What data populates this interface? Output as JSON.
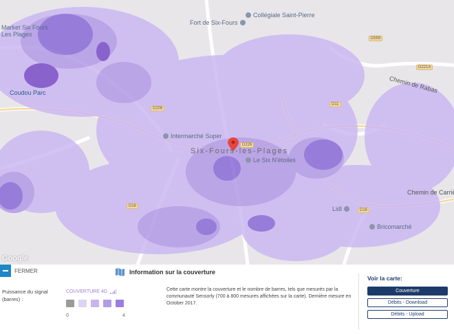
{
  "map": {
    "labels": {
      "fort": "Fort de Six-Fours",
      "collegiale": "Collégiale Saint-Pierre",
      "market": "Market Six Fours Les Plages",
      "coudou": "Coudou Parc",
      "intermarche": "Intermarché Super",
      "six_etoiles": "Le Six N'étoiles",
      "lidl": "Lidl",
      "bricomarche": "Bricomarché",
      "chemin_carriere": "Chemin de Carrière",
      "chemin_rabas": "Chemin de Rabas",
      "city": "Six-Fours-les-Plages",
      "google": "Google"
    },
    "roads": [
      "D559",
      "D221A",
      "D206",
      "D226",
      "D11",
      "D16",
      "D16"
    ],
    "colors": {
      "base": "#e8e6e9",
      "coverage_light": "#cbb9f2",
      "coverage_mid": "#b29ae6",
      "coverage_dark": "#8a6ad8",
      "coverage_darkest": "#7a4cc8",
      "marker": "#e8453c"
    }
  },
  "panel": {
    "close_label": "FERMER",
    "info_title": "Information sur la couverture",
    "signal_label": "Puissance du signal (barres) :",
    "legend_title": "COUVERTURE 4G",
    "legend_colors": [
      "#9a9a9a",
      "#ddd3f3",
      "#c7b5ee",
      "#b19be6",
      "#9b7fde"
    ],
    "scale_min": "0",
    "scale_max": "4",
    "description": "Cette carte montre la couverture et le nombre de barres, tels que mesurés par la communauté Sensorly (700 à 800 mesures affichées sur la carte). Dernière mesure en October 2017.",
    "see_map_title": "Voir la carte:",
    "buttons": [
      "Couverture",
      "Débits - Download",
      "Débits - Upload"
    ]
  }
}
